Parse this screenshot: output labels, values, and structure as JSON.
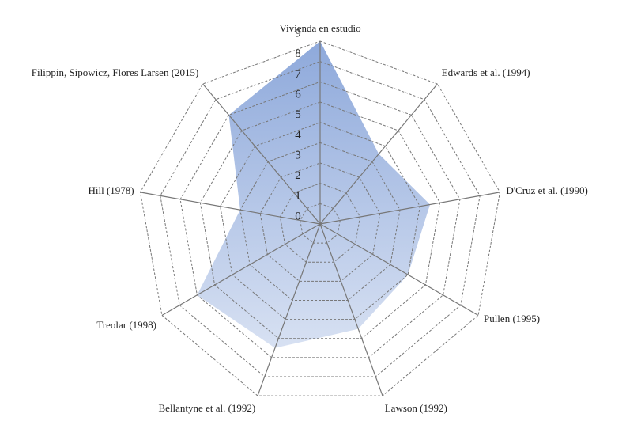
{
  "chart_data": {
    "type": "radar",
    "categories": [
      "Vivienda en estudio",
      "Edwards et al. (1994)",
      "D'Cruz et al. (1990)",
      "Pullen (1995)",
      "Lawson (1992)",
      "Bellantyne et al. (1992)",
      "Treolar (1998)",
      "Hill (1978)",
      "Filippin, Sipowicz, Flores Larsen (2015)"
    ],
    "values": [
      9,
      4.5,
      5.5,
      5,
      5.5,
      6.5,
      7,
      4,
      7
    ],
    "color": "#8ea9db",
    "ylim": [
      0,
      9
    ],
    "yticks": [
      0,
      1,
      2,
      3,
      4,
      5,
      6,
      7,
      8,
      9
    ],
    "grid": true
  }
}
